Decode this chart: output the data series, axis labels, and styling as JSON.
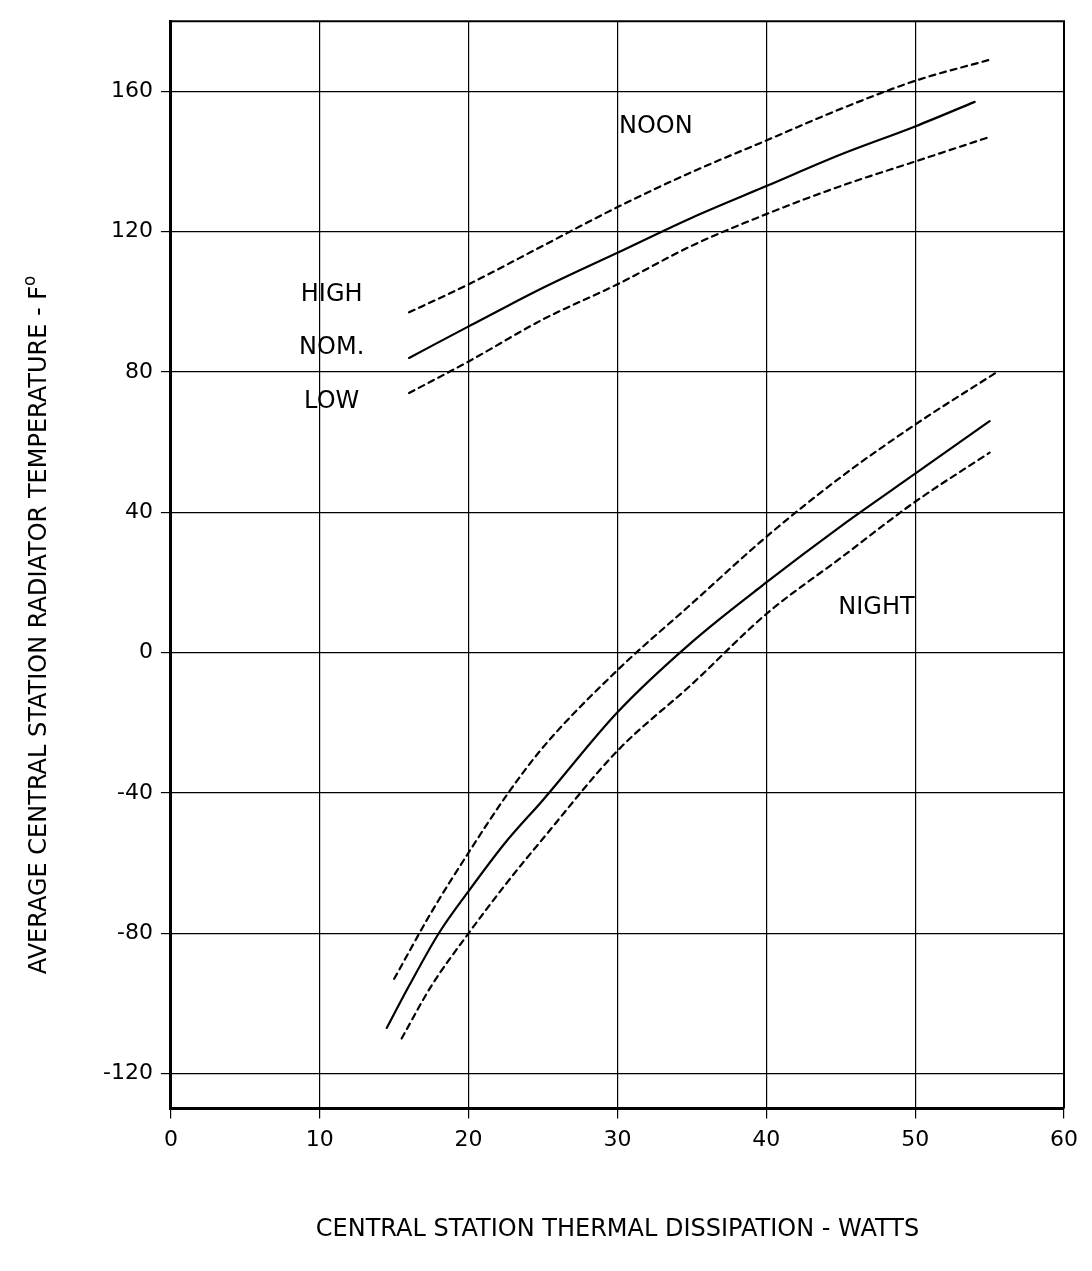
{
  "chart_data": {
    "type": "line",
    "xlabel": "CENTRAL STATION THERMAL DISSIPATION - WATTS",
    "ylabel": "AVERAGE CENTRAL STATION RADIATOR TEMPERATURE - F$^{o}$",
    "xlim": [
      0,
      60
    ],
    "xticks": [
      0,
      10,
      20,
      30,
      40,
      50,
      60
    ],
    "ylim": [
      -130,
      180
    ],
    "yticks": [
      -120,
      -80,
      -40,
      0,
      40,
      80,
      120,
      160
    ],
    "grid": true,
    "marker": "none",
    "series": [
      {
        "color": "#000000",
        "line_style": "dashed",
        "x": [
          16,
          20,
          25,
          30,
          35,
          40,
          45,
          50,
          55
        ],
        "values": [
          97,
          105,
          116,
          127,
          137,
          146,
          155,
          163,
          169
        ]
      },
      {
        "color": "#000000",
        "line_style": "solid",
        "x": [
          16,
          20,
          25,
          30,
          35,
          40,
          45,
          50,
          54
        ],
        "values": [
          84,
          93,
          104,
          114,
          124,
          133,
          142,
          150,
          157
        ]
      },
      {
        "color": "#000000",
        "line_style": "dashed",
        "x": [
          16,
          20,
          25,
          30,
          35,
          40,
          45,
          50,
          55
        ],
        "values": [
          74,
          83,
          95,
          105,
          116,
          125,
          133,
          140,
          147
        ]
      },
      {
        "color": "#000000",
        "line_style": "dashed",
        "x": [
          15,
          17.5,
          20,
          22.5,
          25,
          30,
          35,
          40,
          45,
          50,
          55.5
        ],
        "values": [
          -93,
          -74,
          -57,
          -41,
          -27,
          -5,
          14,
          33,
          50,
          65,
          80
        ]
      },
      {
        "color": "#000000",
        "line_style": "solid",
        "x": [
          14.5,
          16,
          18,
          20,
          22.5,
          25,
          30,
          35,
          40,
          45,
          50,
          55
        ],
        "values": [
          -107,
          -95,
          -80,
          -68,
          -54,
          -42,
          -17,
          3,
          20,
          36,
          51,
          66
        ]
      },
      {
        "color": "#000000",
        "line_style": "dashed",
        "x": [
          15.5,
          17.5,
          20,
          22.5,
          25,
          30,
          35,
          40,
          45,
          50,
          55
        ],
        "values": [
          -110,
          -95,
          -80,
          -66,
          -53,
          -28,
          -9,
          11,
          27,
          43,
          57
        ]
      }
    ],
    "annotations": [
      "NOON",
      "NIGHT",
      "HIGH",
      "NOM.",
      "LOW"
    ]
  }
}
